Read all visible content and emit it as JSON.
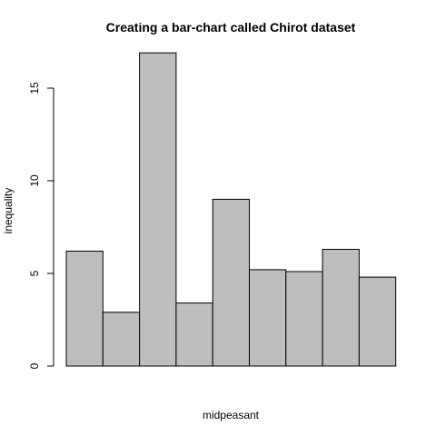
{
  "chart_data": {
    "type": "bar",
    "title": "Creating a bar-chart called Chirot dataset",
    "xlabel": "midpeasant",
    "ylabel": "inequality",
    "values": [
      6.2,
      2.9,
      16.9,
      3.4,
      9.0,
      5.2,
      5.1,
      6.3,
      4.8
    ],
    "ylim": [
      0,
      16.9
    ],
    "yticks": [
      0,
      5,
      10,
      15
    ],
    "ytick_labels": [
      "0",
      "5",
      "10",
      "15"
    ],
    "bar_color": "#bebebe",
    "border_color": "#000000",
    "grid": false,
    "legend": "none"
  }
}
